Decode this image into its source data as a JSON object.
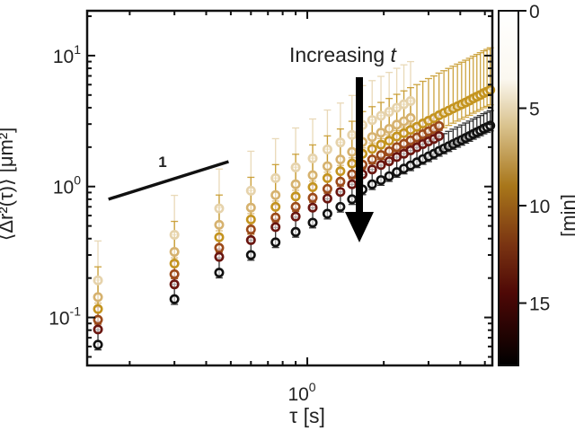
{
  "chart_data": {
    "type": "scatter",
    "title": "",
    "xlabel": "τ [s]",
    "ylabel": "⟨Δr²(τ)⟩ [μm²]",
    "xscale": "log",
    "yscale": "log",
    "xlim": [
      0.136,
      5.35
    ],
    "ylim": [
      0.043,
      22
    ],
    "x_ticks": [
      {
        "value": 1,
        "label": "10",
        "exp": "0"
      }
    ],
    "x_minor_ticks": [
      0.2,
      0.3,
      0.4,
      0.5,
      0.6,
      0.7,
      0.8,
      0.9,
      2,
      3,
      4,
      5
    ],
    "y_ticks": [
      {
        "value": 10,
        "label": "10",
        "exp": "1"
      },
      {
        "value": 1,
        "label": "10",
        "exp": "0"
      },
      {
        "value": 0.1,
        "label": "10",
        "exp": "-1"
      }
    ],
    "grid": false,
    "x": [
      0.15,
      0.3,
      0.45,
      0.6,
      0.75,
      0.9,
      1.05,
      1.2,
      1.35,
      1.5,
      1.65,
      1.8,
      1.95,
      2.1,
      2.25,
      2.4,
      2.55,
      2.7,
      2.85,
      3.0,
      3.15,
      3.3,
      3.45,
      3.6,
      3.75,
      3.9,
      4.05,
      4.2,
      4.35,
      4.5,
      4.65,
      4.8,
      4.95,
      5.1,
      5.25
    ],
    "series": [
      {
        "color": "#e6d3ac",
        "yerr_factor": 2.0,
        "values": [
          0.192,
          0.428,
          0.68,
          0.93,
          1.16,
          1.4,
          1.64,
          1.92,
          2.17,
          2.48,
          2.95,
          3.22,
          3.47,
          3.72,
          4.0,
          4.25,
          4.5
        ]
      },
      {
        "color": "#d6b26f",
        "yerr_factor": 1.35,
        "values": [
          0.143,
          0.317,
          0.51,
          0.69,
          0.86,
          1.04,
          1.22,
          1.43,
          1.61,
          1.84,
          2.19,
          2.39,
          2.58,
          2.76,
          2.97,
          3.15,
          3.34
        ]
      },
      {
        "color": "#c4941f",
        "yerr_factor": 2.1,
        "values": [
          0.116,
          0.258,
          0.41,
          0.56,
          0.7,
          0.84,
          0.99,
          1.16,
          1.31,
          1.5,
          1.78,
          1.94,
          2.09,
          2.24,
          2.41,
          2.56,
          2.71,
          2.86,
          3.03,
          3.18,
          3.33,
          3.5,
          3.65,
          3.8,
          3.95,
          4.1,
          4.24,
          4.39,
          4.54,
          4.71,
          4.86,
          5.01,
          5.18,
          5.31,
          5.46
        ]
      },
      {
        "color": "#9c4a1a",
        "yerr_factor": 1.25,
        "values": [
          0.096,
          0.214,
          0.34,
          0.47,
          0.58,
          0.7,
          0.82,
          0.96,
          1.09,
          1.24,
          1.47,
          1.61,
          1.74,
          1.86,
          2.0,
          2.12,
          2.25,
          2.37,
          2.51,
          2.64,
          2.76,
          2.9
        ]
      },
      {
        "color": "#6a1610",
        "yerr_factor": 1.15,
        "values": [
          0.081,
          0.179,
          0.29,
          0.39,
          0.49,
          0.59,
          0.69,
          0.81,
          0.91,
          1.04,
          1.24,
          1.35,
          1.46,
          1.56,
          1.68,
          1.78,
          1.89,
          1.99,
          2.11,
          2.21,
          2.31,
          2.43
        ]
      },
      {
        "color": "#111111",
        "yerr_factor": 1.3,
        "values": [
          0.062,
          0.138,
          0.22,
          0.3,
          0.375,
          0.45,
          0.53,
          0.62,
          0.7,
          0.8,
          0.95,
          1.04,
          1.12,
          1.2,
          1.29,
          1.37,
          1.45,
          1.53,
          1.62,
          1.7,
          1.78,
          1.87,
          1.95,
          2.03,
          2.11,
          2.19,
          2.27,
          2.35,
          2.43,
          2.52,
          2.6,
          2.68,
          2.77,
          2.84,
          2.92
        ]
      }
    ],
    "annotations": {
      "slope_label": "1",
      "slope_line": {
        "x": [
          0.165,
          0.49
        ],
        "y": [
          0.8,
          1.55
        ]
      },
      "arrow_text": "Increasing ",
      "arrow_text_var": "t"
    },
    "colorbar": {
      "range": [
        0,
        18.2
      ],
      "ticks": [
        "0",
        "5",
        "10",
        "15"
      ],
      "label": "[min]",
      "stops": [
        {
          "v": 0,
          "color": "#ffffff"
        },
        {
          "v": 3.5,
          "color": "#fbf8f0"
        },
        {
          "v": 6,
          "color": "#d8c08a"
        },
        {
          "v": 9,
          "color": "#a8761a"
        },
        {
          "v": 12,
          "color": "#7a3412"
        },
        {
          "v": 14.5,
          "color": "#4e0806"
        },
        {
          "v": 18.2,
          "color": "#000000"
        }
      ]
    }
  }
}
